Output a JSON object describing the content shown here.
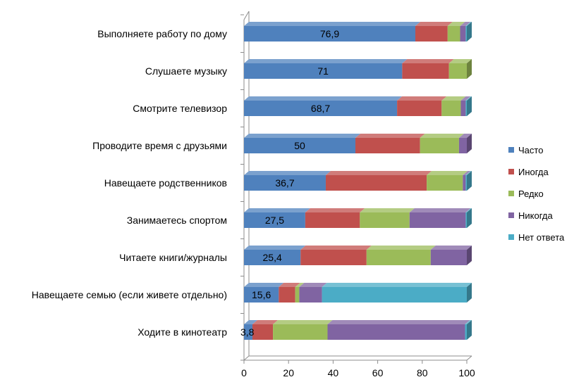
{
  "chart_data": {
    "type": "bar",
    "orientation": "horizontal",
    "stacked": true,
    "style": "3d",
    "categories": [
      "Выполняете работу по дому",
      "Слушаете музыку",
      "Смотрите телевизор",
      "Проводите время с друзьями",
      "Навещаете  родственников",
      "Занимаетесь спортом",
      "Читаете книги/журналы",
      "Навещаете семью (если живете отдельно)",
      "Ходите в кинотеатр"
    ],
    "series": [
      {
        "name": "Часто",
        "color": "#4F81BD",
        "values": [
          76.9,
          71,
          68.7,
          50,
          36.7,
          27.5,
          25.4,
          15.6,
          3.8
        ],
        "show_labels": true
      },
      {
        "name": "Иногда",
        "color": "#C0504D",
        "values": [
          14.5,
          21,
          20,
          29,
          45.3,
          24.5,
          29.6,
          7.4,
          9.2
        ],
        "show_labels": false
      },
      {
        "name": "Редко",
        "color": "#9BBB59",
        "values": [
          5.6,
          8,
          8.6,
          17.5,
          16.2,
          22.3,
          28.8,
          1.8,
          24.5
        ],
        "show_labels": false
      },
      {
        "name": "Никогда",
        "color": "#8064A2",
        "values": [
          2.5,
          0,
          2.2,
          3.5,
          1.3,
          25.2,
          16.2,
          10.2,
          61.7
        ],
        "show_labels": false
      },
      {
        "name": "Нет ответа",
        "color": "#4BACC6",
        "values": [
          0.5,
          0,
          0.5,
          0,
          0.5,
          0.5,
          0,
          65,
          0.8
        ],
        "show_labels": false
      }
    ],
    "x_ticks": [
      "0",
      "20",
      "40",
      "60",
      "80",
      "100"
    ],
    "xlim": [
      0,
      100
    ],
    "xlabel": "",
    "ylabel": "",
    "title": "",
    "grid": false,
    "legend": "right"
  }
}
